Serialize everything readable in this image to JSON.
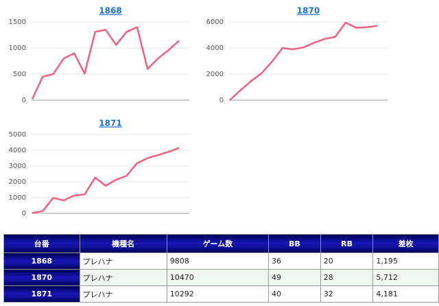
{
  "chart_data": [
    {
      "type": "line",
      "title": "1868",
      "color": "#f2607f",
      "grid": true,
      "values": [
        20,
        450,
        500,
        800,
        900,
        510,
        1310,
        1350,
        1060,
        1310,
        1400,
        600,
        800,
        960,
        1140
      ],
      "ylim": [
        0,
        1500
      ],
      "yticks": [
        0,
        500,
        1000,
        1500
      ]
    },
    {
      "type": "line",
      "title": "1870",
      "color": "#f2607f",
      "grid": true,
      "values": [
        0,
        750,
        1450,
        2050,
        2950,
        4000,
        3900,
        4050,
        4400,
        4700,
        4850,
        5950,
        5550,
        5600,
        5700
      ],
      "ylim": [
        0,
        6000
      ],
      "yticks": [
        0,
        2000,
        4000,
        6000
      ]
    },
    {
      "type": "line",
      "title": "1871",
      "color": "#f2607f",
      "grid": true,
      "values": [
        30,
        150,
        980,
        820,
        1130,
        1200,
        2270,
        1750,
        2130,
        2380,
        3180,
        3500,
        3700,
        3900,
        4150
      ],
      "ylim": [
        0,
        5000
      ],
      "yticks": [
        0,
        1000,
        2000,
        3000,
        4000,
        5000
      ]
    }
  ],
  "table": {
    "headers": [
      "台番",
      "機種名",
      "ゲーム数",
      "BB",
      "RB",
      "差枚"
    ],
    "rows": [
      [
        "1868",
        "プレハナ",
        "9808",
        "36",
        "20",
        "1,195"
      ],
      [
        "1870",
        "プレハナ",
        "10470",
        "49",
        "28",
        "5,712"
      ],
      [
        "1871",
        "プレハナ",
        "10292",
        "40",
        "32",
        "4,181"
      ]
    ]
  }
}
